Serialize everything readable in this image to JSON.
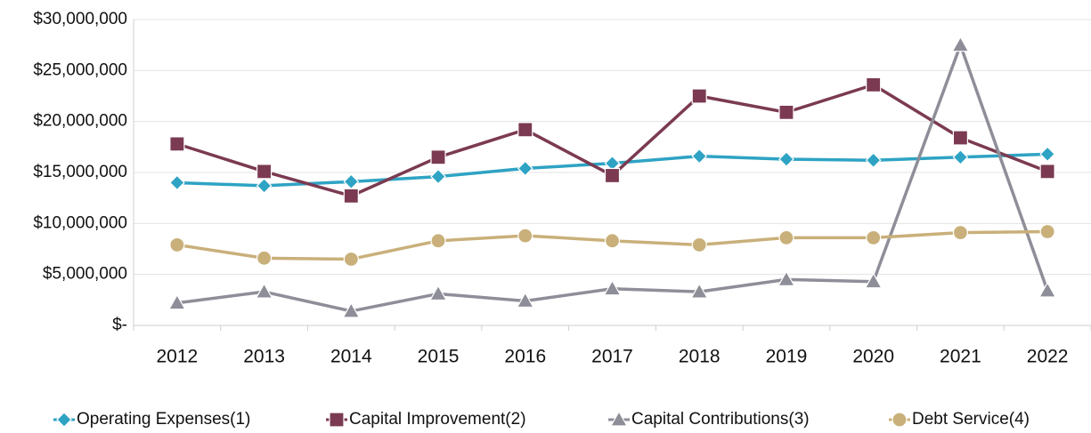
{
  "chart_data": {
    "type": "line",
    "categories": [
      "2012",
      "2013",
      "2014",
      "2015",
      "2016",
      "2017",
      "2018",
      "2019",
      "2020",
      "2021",
      "2022"
    ],
    "series": [
      {
        "name": "Operating Expenses(1)",
        "color": "#2ea3c4",
        "marker": "diamond",
        "values": [
          14000000,
          13700000,
          14100000,
          14600000,
          15400000,
          15900000,
          16600000,
          16300000,
          16200000,
          16500000,
          16800000
        ]
      },
      {
        "name": "Capital Improvement(2)",
        "color": "#7b3a52",
        "marker": "square",
        "values": [
          17800000,
          15100000,
          12700000,
          16500000,
          19200000,
          14700000,
          22500000,
          20900000,
          23600000,
          18400000,
          15100000
        ]
      },
      {
        "name": "Capital Contributions(3)",
        "color": "#8e8e99",
        "marker": "triangle",
        "values": [
          2200000,
          3300000,
          1400000,
          3100000,
          2400000,
          3600000,
          3300000,
          4500000,
          4300000,
          27500000,
          3400000
        ]
      },
      {
        "name": "Debt Service(4)",
        "color": "#c9b07a",
        "marker": "circle",
        "values": [
          7900000,
          6600000,
          6500000,
          8300000,
          8800000,
          8300000,
          7900000,
          8600000,
          8600000,
          9100000,
          9200000
        ]
      }
    ],
    "ylim": [
      0,
      30000000
    ],
    "yticks": [
      {
        "value": 0,
        "label": "$-"
      },
      {
        "value": 5000000,
        "label": "$5,000,000"
      },
      {
        "value": 10000000,
        "label": "$10,000,000"
      },
      {
        "value": 15000000,
        "label": "$15,000,000"
      },
      {
        "value": 20000000,
        "label": "$20,000,000"
      },
      {
        "value": 25000000,
        "label": "$25,000,000"
      },
      {
        "value": 30000000,
        "label": "$30,000,000"
      }
    ],
    "grid": true,
    "legend": "bottom"
  }
}
